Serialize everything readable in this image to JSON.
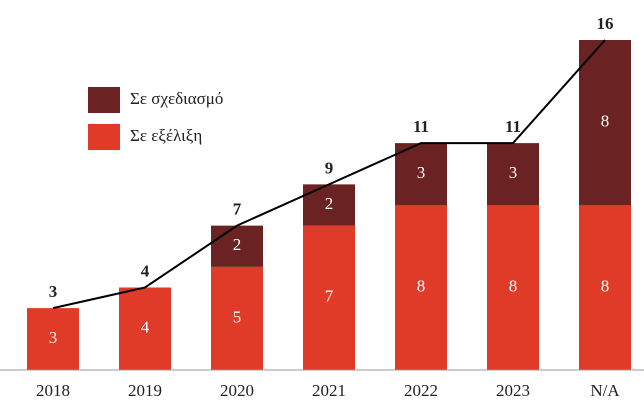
{
  "chart_data": {
    "type": "bar",
    "stacked": true,
    "categories": [
      "2018",
      "2019",
      "2020",
      "2021",
      "2022",
      "2023",
      "N/A"
    ],
    "series": [
      {
        "name": "Σε εξέλιξη",
        "color": "#e03a28",
        "values": [
          3,
          4,
          5,
          7,
          8,
          8,
          8
        ]
      },
      {
        "name": "Σε σχεδιασμό",
        "color": "#6b2222",
        "values": [
          null,
          null,
          2,
          2,
          3,
          3,
          8
        ]
      }
    ],
    "totals": [
      3,
      4,
      7,
      9,
      11,
      11,
      16
    ],
    "ylim": [
      0,
      16
    ]
  }
}
